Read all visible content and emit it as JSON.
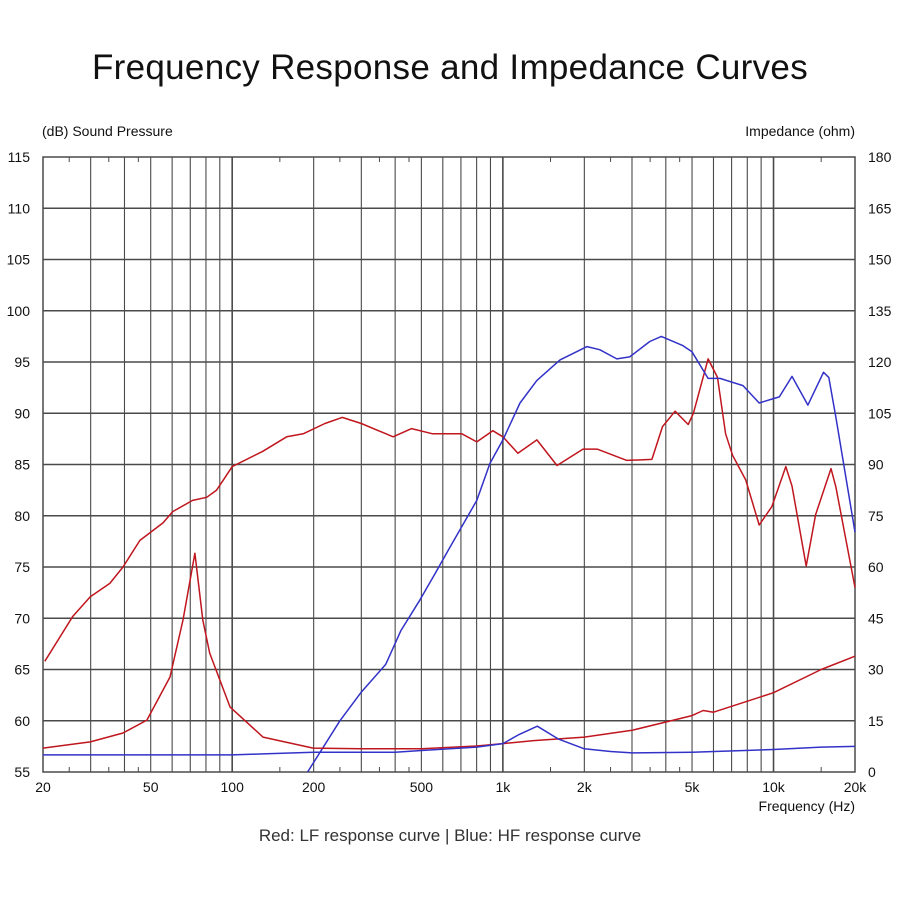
{
  "chart_data": {
    "type": "line",
    "title": "Frequency Response and Impedance Curves",
    "caption": "Red: LF response curve | Blue: HF response curve",
    "xlabel": "Frequency  (Hz)",
    "ylabel_left": "(dB)  Sound Pressure",
    "ylabel_right": "Impedance  (ohm)",
    "xscale": "log",
    "xlim": [
      20,
      20000
    ],
    "ylim_left": [
      55,
      115
    ],
    "ylim_right": [
      0,
      180
    ],
    "grid": true,
    "x_ticks": [
      {
        "value": 20,
        "label": "20"
      },
      {
        "value": 50,
        "label": "50"
      },
      {
        "value": 100,
        "label": "100"
      },
      {
        "value": 200,
        "label": "200"
      },
      {
        "value": 500,
        "label": "500"
      },
      {
        "value": 1000,
        "label": "1k"
      },
      {
        "value": 2000,
        "label": "2k"
      },
      {
        "value": 5000,
        "label": "5k"
      },
      {
        "value": 10000,
        "label": "10k"
      },
      {
        "value": 20000,
        "label": "20k"
      }
    ],
    "y_ticks_left": [
      "115",
      "110",
      "105",
      "100",
      "95",
      "90",
      "85",
      "80",
      "75",
      "70",
      "65",
      "60",
      "55"
    ],
    "y_ticks_right": [
      "180",
      "165",
      "150",
      "135",
      "120",
      "105",
      "90",
      "75",
      "60",
      "45",
      "30",
      "15",
      "0"
    ],
    "colors": {
      "lf": "#c0161e",
      "hf": "#3232c8",
      "grid": "#4a4a4a"
    },
    "series": [
      {
        "name": "LF sound pressure",
        "color_key": "lf",
        "axis": "left",
        "x": [
          20.3,
          25.8,
          29.9,
          35.3,
          39.5,
          45.6,
          55.5,
          60.3,
          71.4,
          80.5,
          87.6,
          92.8,
          100,
          130,
          159,
          183,
          220,
          255,
          300,
          393,
          460,
          550,
          637,
          706,
          801,
          918,
          1000,
          1137,
          1336,
          1585,
          1977,
          2230,
          2870,
          3555,
          3890,
          4330,
          4840,
          5060,
          5730,
          6210,
          6650,
          7060,
          7890,
          8850,
          9860,
          11100,
          11700,
          13200,
          14300,
          16300,
          17000,
          20000
        ],
        "y": [
          65.8,
          70.2,
          72.1,
          73.4,
          75,
          77.6,
          79.3,
          80.4,
          81.5,
          81.8,
          82.5,
          83.5,
          84.8,
          86.3,
          87.7,
          88,
          89,
          89.6,
          89,
          87.7,
          88.5,
          88,
          88,
          88,
          87.2,
          88.3,
          87.7,
          86.1,
          87.4,
          84.9,
          86.5,
          86.5,
          85.4,
          85.5,
          88.7,
          90.2,
          88.9,
          90,
          95.3,
          93.5,
          88,
          85.9,
          83.5,
          79.1,
          80.9,
          84.8,
          82.9,
          75.1,
          80.1,
          84.6,
          82.8,
          73
        ]
      },
      {
        "name": "HF sound pressure",
        "color_key": "hf",
        "axis": "left",
        "x": [
          190,
          250,
          300,
          369,
          420,
          494,
          560,
          637,
          801,
          896,
          1000,
          1157,
          1336,
          1626,
          2046,
          2280,
          2636,
          2940,
          3490,
          3850,
          4620,
          5000,
          5730,
          6340,
          7710,
          8850,
          9920,
          10500,
          11700,
          13400,
          15300,
          16000,
          17000,
          20000
        ],
        "y": [
          55,
          60,
          62.8,
          65.5,
          68.8,
          71.8,
          74.3,
          76.9,
          81.5,
          85.1,
          87.4,
          91,
          93.2,
          95.2,
          96.5,
          96.2,
          95.3,
          95.5,
          97,
          97.5,
          96.6,
          96,
          93.4,
          93.4,
          92.7,
          91,
          91.4,
          91.6,
          93.6,
          90.8,
          94,
          93.5,
          89.6,
          78.4
        ]
      },
      {
        "name": "LF impedance",
        "color_key": "lf",
        "axis": "right",
        "x": [
          20,
          29.9,
          39.5,
          48.4,
          58.9,
          65.8,
          72.8,
          77.9,
          82.6,
          98.2,
          130,
          199,
          300,
          500,
          800,
          1000,
          1300,
          2000,
          3000,
          5000,
          5500,
          6000,
          10000,
          15000,
          20000
        ],
        "y": [
          7,
          8.8,
          11.4,
          15.2,
          27.8,
          44.5,
          64,
          44.5,
          34.8,
          19,
          10.2,
          7,
          6.8,
          6.8,
          7.6,
          8.3,
          9.2,
          10.2,
          12.2,
          16.5,
          18,
          17.5,
          23.2,
          30,
          33.9
        ]
      },
      {
        "name": "HF impedance",
        "color_key": "hf",
        "axis": "right",
        "x": [
          20,
          100,
          130,
          200,
          400,
          500,
          800,
          1000,
          1150,
          1340,
          1600,
          2000,
          2500,
          3000,
          5000,
          10000,
          15000,
          20000
        ],
        "y": [
          5,
          5,
          5.3,
          5.8,
          5.8,
          6.3,
          7.3,
          8.3,
          11,
          13.4,
          9.7,
          6.8,
          6,
          5.6,
          5.8,
          6.6,
          7.3,
          7.5
        ]
      }
    ]
  }
}
